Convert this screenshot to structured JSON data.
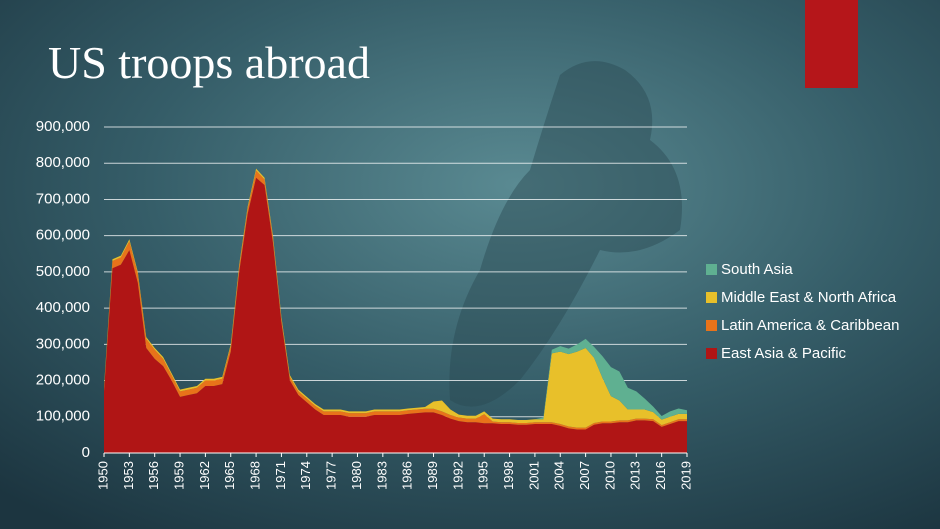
{
  "chart_data": {
    "type": "stacked_area",
    "title": "US troops abroad",
    "x": [
      1950,
      1951,
      1952,
      1953,
      1954,
      1955,
      1956,
      1957,
      1958,
      1959,
      1960,
      1961,
      1962,
      1963,
      1964,
      1965,
      1966,
      1967,
      1968,
      1969,
      1970,
      1971,
      1972,
      1973,
      1974,
      1975,
      1976,
      1977,
      1978,
      1979,
      1980,
      1981,
      1982,
      1983,
      1984,
      1985,
      1986,
      1987,
      1988,
      1989,
      1990,
      1991,
      1992,
      1993,
      1994,
      1995,
      1996,
      1997,
      1998,
      1999,
      2000,
      2001,
      2002,
      2003,
      2004,
      2005,
      2006,
      2007,
      2008,
      2009,
      2010,
      2011,
      2012,
      2013,
      2014,
      2015,
      2016,
      2017,
      2018,
      2019
    ],
    "xlim": [
      1950,
      2019
    ],
    "xticks": [
      1950,
      1953,
      1956,
      1959,
      1962,
      1965,
      1968,
      1971,
      1974,
      1977,
      1980,
      1983,
      1986,
      1989,
      1992,
      1995,
      1998,
      2001,
      2004,
      2007,
      2010,
      2013,
      2016,
      2019
    ],
    "ylim": [
      0,
      900000
    ],
    "yticks": [
      0,
      {
        "value": 100000,
        "label": "100,000"
      },
      {
        "value": 200000,
        "label": "200,000"
      },
      {
        "value": 300000,
        "label": "300,000"
      },
      {
        "value": 400000,
        "label": "400,000"
      },
      {
        "value": 500000,
        "label": "500,000"
      },
      {
        "value": 600000,
        "label": "600,000"
      },
      {
        "value": 700000,
        "label": "700,000"
      },
      {
        "value": 800000,
        "label": "800,000"
      },
      {
        "value": 900000,
        "label": "900,000"
      }
    ],
    "grid": true,
    "legend": "right",
    "series": [
      {
        "name": "East Asia & Pacific",
        "color": "#b01515",
        "values": [
          170000,
          510000,
          520000,
          560000,
          470000,
          290000,
          260000,
          240000,
          200000,
          155000,
          160000,
          165000,
          185000,
          185000,
          190000,
          280000,
          500000,
          660000,
          760000,
          740000,
          580000,
          360000,
          200000,
          160000,
          140000,
          120000,
          105000,
          105000,
          105000,
          100000,
          100000,
          100000,
          105000,
          105000,
          105000,
          105000,
          108000,
          110000,
          112000,
          112000,
          105000,
          95000,
          88000,
          85000,
          85000,
          82000,
          82000,
          80000,
          80000,
          78000,
          78000,
          80000,
          80000,
          80000,
          75000,
          68000,
          65000,
          65000,
          78000,
          82000,
          82000,
          85000,
          85000,
          90000,
          90000,
          88000,
          72000,
          80000,
          88000,
          88000
        ]
      },
      {
        "name": "Latin America & Caribbean",
        "color": "#e8731a",
        "values": [
          8000,
          20000,
          20000,
          25000,
          25000,
          25000,
          25000,
          20000,
          15000,
          15000,
          15000,
          15000,
          15000,
          15000,
          15000,
          15000,
          15000,
          15000,
          20000,
          15000,
          15000,
          10000,
          10000,
          10000,
          10000,
          10000,
          10000,
          10000,
          10000,
          10000,
          10000,
          10000,
          10000,
          10000,
          10000,
          10000,
          10000,
          10000,
          10000,
          10000,
          10000,
          10000,
          10000,
          10000,
          10000,
          25000,
          5000,
          5000,
          5000,
          5000,
          5000,
          5000,
          5000,
          5000,
          5000,
          5000,
          5000,
          5000,
          5000,
          5000,
          5000,
          5000,
          5000,
          5000,
          5000,
          5000,
          5000,
          5000,
          5000,
          5000
        ]
      },
      {
        "name": "Middle East & North Africa",
        "color": "#e8c02a",
        "values": [
          5000,
          5000,
          5000,
          5000,
          5000,
          5000,
          5000,
          5000,
          5000,
          5000,
          5000,
          5000,
          5000,
          5000,
          5000,
          5000,
          5000,
          5000,
          5000,
          5000,
          5000,
          5000,
          5000,
          5000,
          5000,
          5000,
          5000,
          5000,
          5000,
          5000,
          5000,
          5000,
          5000,
          5000,
          5000,
          5000,
          5000,
          5000,
          5000,
          20000,
          30000,
          15000,
          8000,
          8000,
          8000,
          8000,
          8000,
          8000,
          8000,
          8000,
          8000,
          8000,
          8000,
          190000,
          200000,
          200000,
          210000,
          220000,
          180000,
          120000,
          70000,
          55000,
          30000,
          25000,
          25000,
          20000,
          15000,
          15000,
          15000,
          15000
        ]
      },
      {
        "name": "South Asia",
        "color": "#5fb091",
        "values": [
          0,
          0,
          0,
          0,
          0,
          0,
          0,
          0,
          0,
          0,
          0,
          0,
          0,
          0,
          0,
          0,
          0,
          0,
          0,
          0,
          0,
          0,
          0,
          0,
          0,
          0,
          0,
          0,
          0,
          0,
          0,
          0,
          0,
          0,
          0,
          0,
          0,
          0,
          0,
          0,
          0,
          0,
          0,
          0,
          0,
          0,
          0,
          0,
          0,
          0,
          0,
          0,
          5000,
          10000,
          15000,
          15000,
          20000,
          25000,
          30000,
          60000,
          80000,
          80000,
          60000,
          50000,
          30000,
          15000,
          10000,
          15000,
          15000,
          10000
        ]
      }
    ]
  }
}
